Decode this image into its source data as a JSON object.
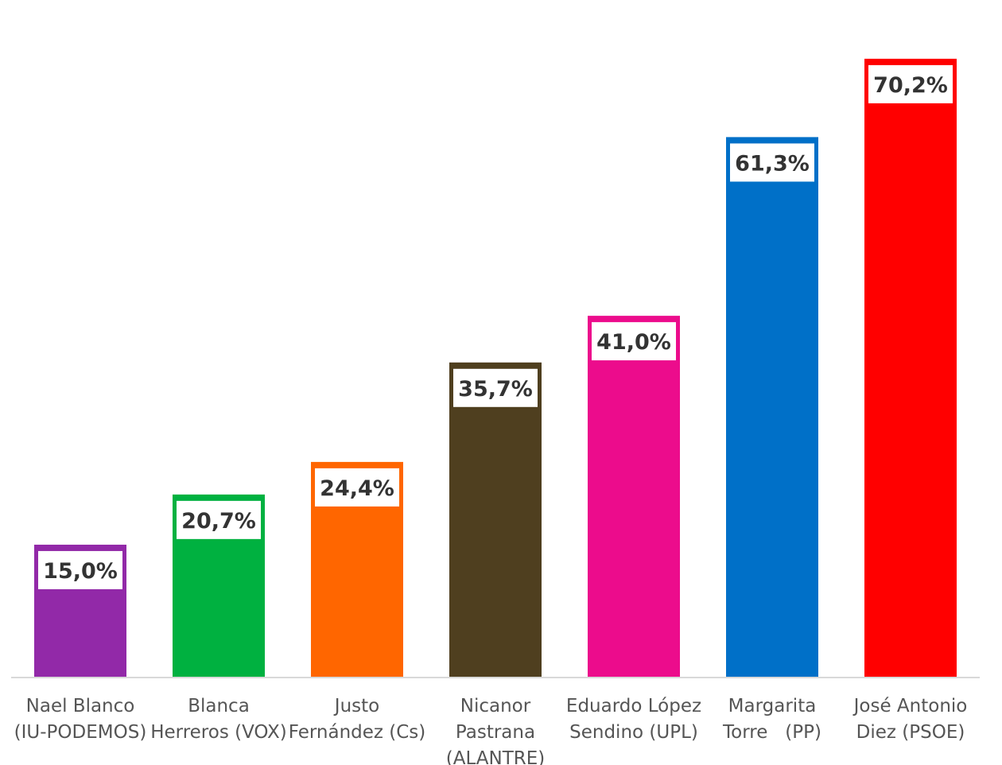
{
  "chart_data": {
    "type": "bar",
    "title": "",
    "xlabel": "",
    "ylabel": "",
    "ylim": [
      0,
      75
    ],
    "grid": false,
    "legend": "none",
    "unit": "%",
    "categories": [
      [
        "Nael Blanco",
        "(IU-PODEMOS)"
      ],
      [
        "Blanca",
        "Herreros (VOX)"
      ],
      [
        "Justo",
        "Fernández (Cs)"
      ],
      [
        "Nicanor",
        "Pastrana",
        "(ALANTRE)"
      ],
      [
        "Eduardo López",
        "Sendino (UPL)"
      ],
      [
        "Margarita",
        "Torre   (PP)"
      ],
      [
        "José Antonio",
        "Diez (PSOE)"
      ]
    ],
    "values": [
      15.0,
      20.7,
      24.4,
      35.7,
      41.0,
      61.3,
      70.2
    ],
    "value_labels": [
      "15,0%",
      "20,7%",
      "24,4%",
      "35,7%",
      "41,0%",
      "61,3%",
      "70,2%"
    ],
    "colors": [
      "#9229a8",
      "#00b140",
      "#ff6600",
      "#4f3f1f",
      "#ec0c8c",
      "#0070c8",
      "#ff0000"
    ]
  }
}
